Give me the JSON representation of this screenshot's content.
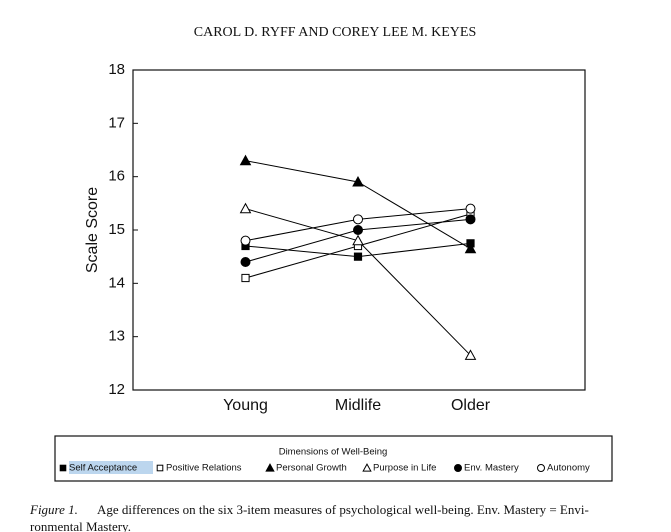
{
  "header": {
    "title": "CAROL D. RYFF AND COREY LEE M. KEYES"
  },
  "chart_data": {
    "type": "line",
    "y_label": "Scale Score",
    "categories": [
      "Young",
      "Midlife",
      "Older"
    ],
    "ylim": [
      12,
      18
    ],
    "yticks": [
      12,
      13,
      14,
      15,
      16,
      17,
      18
    ],
    "legend_title": "Dimensions of Well-Being",
    "series": [
      {
        "name": "Self Acceptance",
        "marker": "square",
        "filled": true,
        "color": "#000000",
        "values": [
          14.7,
          14.5,
          14.75
        ]
      },
      {
        "name": "Positive Relations",
        "marker": "square",
        "filled": false,
        "color": "#000000",
        "values": [
          14.1,
          14.7,
          15.3
        ]
      },
      {
        "name": "Personal Growth",
        "marker": "triangle",
        "filled": true,
        "color": "#000000",
        "values": [
          16.3,
          15.9,
          14.65
        ]
      },
      {
        "name": "Purpose in Life",
        "marker": "triangle",
        "filled": false,
        "color": "#000000",
        "values": [
          15.4,
          14.8,
          12.65
        ]
      },
      {
        "name": "Env. Mastery",
        "marker": "circle",
        "filled": true,
        "color": "#000000",
        "values": [
          14.4,
          15.0,
          15.2
        ]
      },
      {
        "name": "Autonomy",
        "marker": "circle",
        "filled": false,
        "color": "#000000",
        "values": [
          14.8,
          15.2,
          15.4
        ]
      }
    ]
  },
  "caption": {
    "label": "Figure 1.",
    "lines": [
      "Age differences on the six 3-item measures of psychological well-being. Env. Mastery = Envi-",
      "ronmental Mastery."
    ]
  }
}
